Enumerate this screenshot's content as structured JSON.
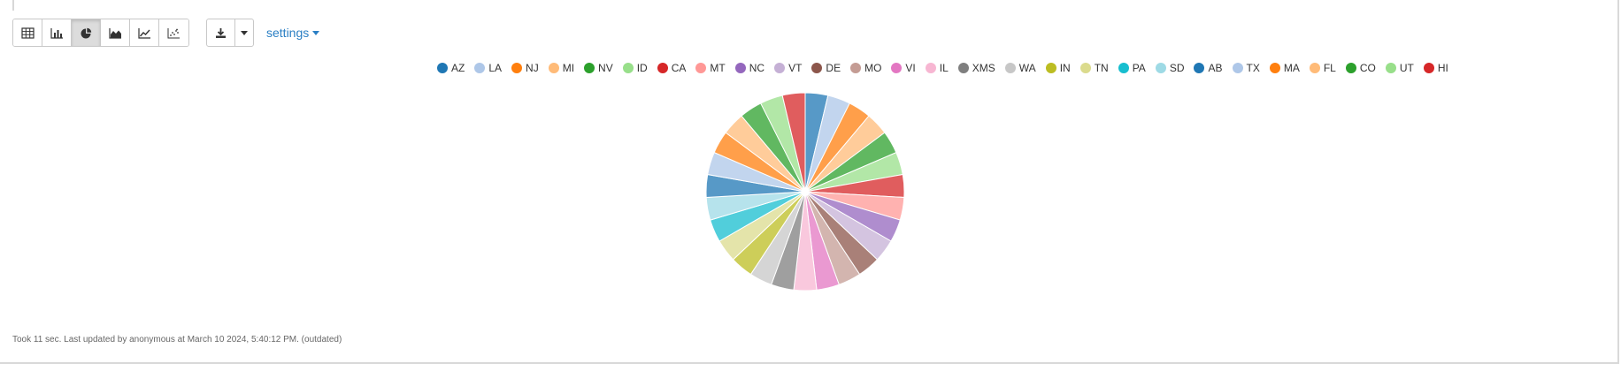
{
  "toolbar": {
    "view_buttons": [
      {
        "icon": "table-icon",
        "active": false
      },
      {
        "icon": "bar-chart-icon",
        "active": false
      },
      {
        "icon": "pie-chart-icon",
        "active": true
      },
      {
        "icon": "area-chart-icon",
        "active": false
      },
      {
        "icon": "line-chart-icon",
        "active": false
      },
      {
        "icon": "scatter-chart-icon",
        "active": false
      }
    ],
    "download_icon": "download-icon",
    "settings_label": "settings"
  },
  "footer": {
    "status": "Took 11 sec. Last updated by anonymous at March 10 2024, 5:40:12 PM. (outdated)"
  },
  "chart_data": {
    "type": "pie",
    "labels": [
      "AZ",
      "LA",
      "NJ",
      "MI",
      "NV",
      "ID",
      "CA",
      "MT",
      "NC",
      "VT",
      "DE",
      "MO",
      "VI",
      "IL",
      "XMS",
      "WA",
      "IN",
      "TN",
      "PA",
      "SD",
      "AB",
      "TX",
      "MA",
      "FL",
      "CO",
      "UT",
      "HI"
    ],
    "values": [
      1,
      1,
      1,
      1,
      1,
      1,
      1,
      1,
      1,
      1,
      1,
      1,
      1,
      1,
      1,
      1,
      1,
      1,
      1,
      1,
      1,
      1,
      1,
      1,
      1,
      1,
      1
    ],
    "colors": [
      "#1f77b4",
      "#aec7e8",
      "#ff7f0e",
      "#ffbb78",
      "#2ca02c",
      "#98df8a",
      "#d62728",
      "#ff9896",
      "#9467bd",
      "#c5b0d5",
      "#8c564b",
      "#c49c94",
      "#e377c2",
      "#f7b6d2",
      "#7f7f7f",
      "#c7c7c7",
      "#bcbd22",
      "#dbdb8d",
      "#17becf",
      "#9edae5",
      "#1f77b4",
      "#aec7e8",
      "#ff7f0e",
      "#ffbb78",
      "#2ca02c",
      "#98df8a",
      "#d62728"
    ],
    "legend_position": "top"
  }
}
